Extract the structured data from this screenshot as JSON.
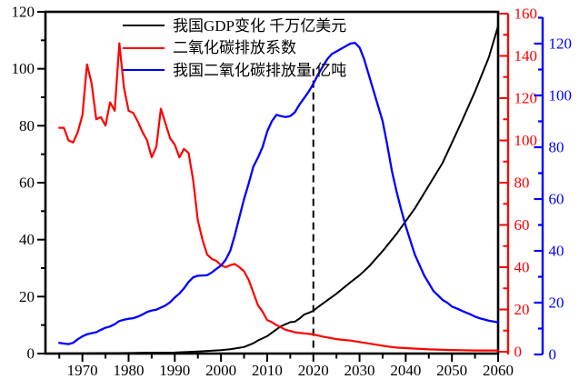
{
  "colors": {
    "black": "#000000",
    "red": "#ff0000",
    "blue": "#0000ff",
    "background": "#ffffff"
  },
  "legend": {
    "items": [
      {
        "label": "我国GDP变化 千万亿美元",
        "color": "#000000"
      },
      {
        "label": "二氧化碳排放系数",
        "color": "#ff0000"
      },
      {
        "label": "我国二氧化碳排放量 亿吨",
        "color": "#0000ff"
      }
    ]
  },
  "chart_data": {
    "type": "line",
    "title": "",
    "xlabel": "",
    "grid": false,
    "legend_position": "top-center-inside",
    "axes": {
      "x": {
        "range": [
          1962,
          2060
        ],
        "majors": [
          1970,
          1980,
          1990,
          2000,
          2010,
          2020,
          2030,
          2040,
          2050,
          2060
        ],
        "minors": [
          1965,
          1975,
          1985,
          1995,
          2005,
          2015,
          2025,
          2035,
          2045,
          2055
        ]
      },
      "left": {
        "label": "",
        "color": "#000000",
        "range": [
          0,
          120
        ],
        "majors": [
          0,
          20,
          40,
          60,
          80,
          100,
          120
        ],
        "minors": [
          10,
          30,
          50,
          70,
          90,
          110
        ]
      },
      "right_red": {
        "label": "",
        "color": "#ff0000",
        "range": [
          0,
          160
        ],
        "majors": [
          0,
          20,
          40,
          60,
          80,
          100,
          120,
          140,
          160
        ],
        "minors": [
          10,
          30,
          50,
          70,
          90,
          110,
          130,
          150
        ]
      },
      "right_blue": {
        "label": "",
        "color": "#0000ff",
        "range": [
          0,
          130
        ],
        "majors": [
          0,
          20,
          40,
          60,
          80,
          100,
          120
        ],
        "minors": [
          10,
          30,
          50,
          70,
          90,
          110,
          130
        ]
      }
    },
    "annotations": [
      {
        "type": "dashed-vertical-line",
        "x": 2020,
        "y_top_left_units": 100,
        "color": "#000000"
      }
    ],
    "series": [
      {
        "name": "我国GDP变化 千万亿美元",
        "color": "#000000",
        "axis": "left",
        "width": 2,
        "points": [
          [
            1965,
            0.07
          ],
          [
            1970,
            0.09
          ],
          [
            1975,
            0.16
          ],
          [
            1980,
            0.19
          ],
          [
            1985,
            0.31
          ],
          [
            1990,
            0.36
          ],
          [
            1995,
            0.73
          ],
          [
            2000,
            1.2
          ],
          [
            2002,
            1.5
          ],
          [
            2005,
            2.3
          ],
          [
            2007,
            3.6
          ],
          [
            2008,
            4.6
          ],
          [
            2010,
            6.1
          ],
          [
            2012,
            8.5
          ],
          [
            2013,
            9.6
          ],
          [
            2015,
            11
          ],
          [
            2016,
            11.2
          ],
          [
            2017,
            12.3
          ],
          [
            2018,
            13.7
          ],
          [
            2019,
            14.3
          ],
          [
            2020,
            15
          ],
          [
            2021,
            16.3
          ],
          [
            2022,
            17.5
          ],
          [
            2025,
            21
          ],
          [
            2028,
            25
          ],
          [
            2030,
            27.5
          ],
          [
            2032,
            30.5
          ],
          [
            2035,
            36
          ],
          [
            2038,
            42
          ],
          [
            2040,
            46.5
          ],
          [
            2042,
            51
          ],
          [
            2045,
            59
          ],
          [
            2048,
            67
          ],
          [
            2050,
            74
          ],
          [
            2052,
            81
          ],
          [
            2055,
            92
          ],
          [
            2058,
            104
          ],
          [
            2060,
            115
          ]
        ]
      },
      {
        "name": "二氧化碳排放系数",
        "color": "#ff0000",
        "axis": "right_red",
        "width": 2.2,
        "points": [
          [
            1965,
            106
          ],
          [
            1966,
            106
          ],
          [
            1967,
            100
          ],
          [
            1968,
            99
          ],
          [
            1969,
            104
          ],
          [
            1970,
            112
          ],
          [
            1971,
            136
          ],
          [
            1972,
            127
          ],
          [
            1973,
            110
          ],
          [
            1974,
            111
          ],
          [
            1975,
            107
          ],
          [
            1976,
            118
          ],
          [
            1977,
            114
          ],
          [
            1978,
            146
          ],
          [
            1979,
            125
          ],
          [
            1980,
            114
          ],
          [
            1981,
            113
          ],
          [
            1982,
            109
          ],
          [
            1983,
            104
          ],
          [
            1984,
            100
          ],
          [
            1985,
            92
          ],
          [
            1986,
            97
          ],
          [
            1987,
            115
          ],
          [
            1988,
            108
          ],
          [
            1989,
            101
          ],
          [
            1990,
            98
          ],
          [
            1991,
            92
          ],
          [
            1992,
            96
          ],
          [
            1993,
            94
          ],
          [
            1994,
            81
          ],
          [
            1995,
            62
          ],
          [
            1996,
            53
          ],
          [
            1997,
            46
          ],
          [
            1998,
            44
          ],
          [
            1999,
            43
          ],
          [
            2000,
            41
          ],
          [
            2001,
            40
          ],
          [
            2002,
            41
          ],
          [
            2003,
            41.5
          ],
          [
            2004,
            40
          ],
          [
            2005,
            38
          ],
          [
            2006,
            34
          ],
          [
            2007,
            28
          ],
          [
            2008,
            22
          ],
          [
            2009,
            19
          ],
          [
            2010,
            15
          ],
          [
            2011,
            14
          ],
          [
            2012,
            12.6
          ],
          [
            2014,
            10.4
          ],
          [
            2016,
            9.2
          ],
          [
            2018,
            8.7
          ],
          [
            2020,
            8.2
          ],
          [
            2022,
            7.2
          ],
          [
            2025,
            6
          ],
          [
            2028,
            5.3
          ],
          [
            2030,
            4.6
          ],
          [
            2032,
            3.9
          ],
          [
            2034,
            3.2
          ],
          [
            2036,
            2.5
          ],
          [
            2038,
            2
          ],
          [
            2040,
            1.7
          ],
          [
            2045,
            1.1
          ],
          [
            2050,
            0.8
          ],
          [
            2055,
            0.6
          ],
          [
            2060,
            0.6
          ]
        ]
      },
      {
        "name": "我国二氧化碳排放量 亿吨",
        "color": "#0000ff",
        "axis": "right_blue",
        "width": 2.3,
        "points": [
          [
            1965,
            4.5
          ],
          [
            1966,
            4.2
          ],
          [
            1967,
            4.0
          ],
          [
            1968,
            4.5
          ],
          [
            1969,
            5.9
          ],
          [
            1970,
            7.0
          ],
          [
            1971,
            7.8
          ],
          [
            1972,
            8.2
          ],
          [
            1973,
            8.6
          ],
          [
            1974,
            9.5
          ],
          [
            1975,
            10.3
          ],
          [
            1976,
            10.8
          ],
          [
            1977,
            11.7
          ],
          [
            1978,
            12.9
          ],
          [
            1979,
            13.4
          ],
          [
            1980,
            13.8
          ],
          [
            1981,
            14.0
          ],
          [
            1982,
            14.6
          ],
          [
            1983,
            15.4
          ],
          [
            1984,
            16.4
          ],
          [
            1985,
            17.0
          ],
          [
            1986,
            17.3
          ],
          [
            1987,
            18.1
          ],
          [
            1988,
            18.9
          ],
          [
            1989,
            20.2
          ],
          [
            1990,
            22.0
          ],
          [
            1991,
            23.5
          ],
          [
            1992,
            25.5
          ],
          [
            1993,
            28.0
          ],
          [
            1994,
            29.8
          ],
          [
            1995,
            30.4
          ],
          [
            1996,
            30.5
          ],
          [
            1997,
            30.6
          ],
          [
            1998,
            31.6
          ],
          [
            1999,
            33.0
          ],
          [
            2000,
            34.3
          ],
          [
            2001,
            36.5
          ],
          [
            2002,
            40.0
          ],
          [
            2003,
            46.0
          ],
          [
            2004,
            53.0
          ],
          [
            2005,
            60.0
          ],
          [
            2006,
            66.0
          ],
          [
            2007,
            72.5
          ],
          [
            2008,
            76.0
          ],
          [
            2009,
            80.0
          ],
          [
            2010,
            86.0
          ],
          [
            2011,
            90.0
          ],
          [
            2012,
            92.5
          ],
          [
            2013,
            92.0
          ],
          [
            2014,
            91.7
          ],
          [
            2015,
            92.0
          ],
          [
            2016,
            93.5
          ],
          [
            2017,
            96.5
          ],
          [
            2018,
            99.0
          ],
          [
            2019,
            101.5
          ],
          [
            2020,
            104.5
          ],
          [
            2021,
            108.0
          ],
          [
            2022,
            111.0
          ],
          [
            2023,
            114.0
          ],
          [
            2024,
            116.0
          ],
          [
            2025,
            117.0
          ],
          [
            2026,
            118.0
          ],
          [
            2027,
            119.0
          ],
          [
            2028,
            120.0
          ],
          [
            2029,
            120.3
          ],
          [
            2030,
            118.5
          ],
          [
            2031,
            114.0
          ],
          [
            2032,
            108.0
          ],
          [
            2033,
            102.0
          ],
          [
            2034,
            96.0
          ],
          [
            2035,
            90.0
          ],
          [
            2036,
            81.0
          ],
          [
            2037,
            71.0
          ],
          [
            2038,
            63.0
          ],
          [
            2039,
            56.0
          ],
          [
            2040,
            49.5
          ],
          [
            2041,
            44.0
          ],
          [
            2042,
            38.5
          ],
          [
            2043,
            34.5
          ],
          [
            2044,
            30.5
          ],
          [
            2045,
            27.5
          ],
          [
            2046,
            24.5
          ],
          [
            2047,
            22.8
          ],
          [
            2048,
            21.0
          ],
          [
            2049,
            20.0
          ],
          [
            2050,
            18.5
          ],
          [
            2051,
            17.8
          ],
          [
            2052,
            17.0
          ],
          [
            2053,
            16.2
          ],
          [
            2054,
            15.5
          ],
          [
            2055,
            14.6
          ],
          [
            2056,
            14.0
          ],
          [
            2057,
            13.5
          ],
          [
            2058,
            13.0
          ],
          [
            2059,
            12.7
          ],
          [
            2060,
            12.4
          ]
        ]
      }
    ]
  }
}
